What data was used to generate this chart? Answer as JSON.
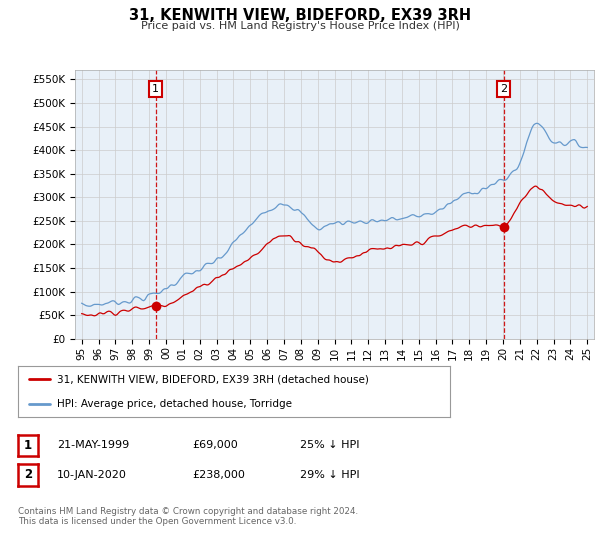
{
  "title": "31, KENWITH VIEW, BIDEFORD, EX39 3RH",
  "subtitle": "Price paid vs. HM Land Registry's House Price Index (HPI)",
  "ylabel_ticks": [
    "£0",
    "£50K",
    "£100K",
    "£150K",
    "£200K",
    "£250K",
    "£300K",
    "£350K",
    "£400K",
    "£450K",
    "£500K",
    "£550K"
  ],
  "ytick_values": [
    0,
    50000,
    100000,
    150000,
    200000,
    250000,
    300000,
    350000,
    400000,
    450000,
    500000,
    550000
  ],
  "ylim": [
    0,
    570000
  ],
  "xlim_start": 1994.6,
  "xlim_end": 2025.4,
  "purchase1_x": 1999.38,
  "purchase1_y": 69000,
  "purchase2_x": 2020.03,
  "purchase2_y": 238000,
  "vline1_x": 1999.38,
  "vline2_x": 2020.03,
  "property_color": "#cc0000",
  "hpi_color": "#6699cc",
  "chart_bg": "#e8f0f8",
  "legend_label_property": "31, KENWITH VIEW, BIDEFORD, EX39 3RH (detached house)",
  "legend_label_hpi": "HPI: Average price, detached house, Torridge",
  "table_row1": [
    "1",
    "21-MAY-1999",
    "£69,000",
    "25% ↓ HPI"
  ],
  "table_row2": [
    "2",
    "10-JAN-2020",
    "£238,000",
    "29% ↓ HPI"
  ],
  "footer": "Contains HM Land Registry data © Crown copyright and database right 2024.\nThis data is licensed under the Open Government Licence v3.0.",
  "background_color": "#ffffff",
  "grid_color": "#cccccc"
}
